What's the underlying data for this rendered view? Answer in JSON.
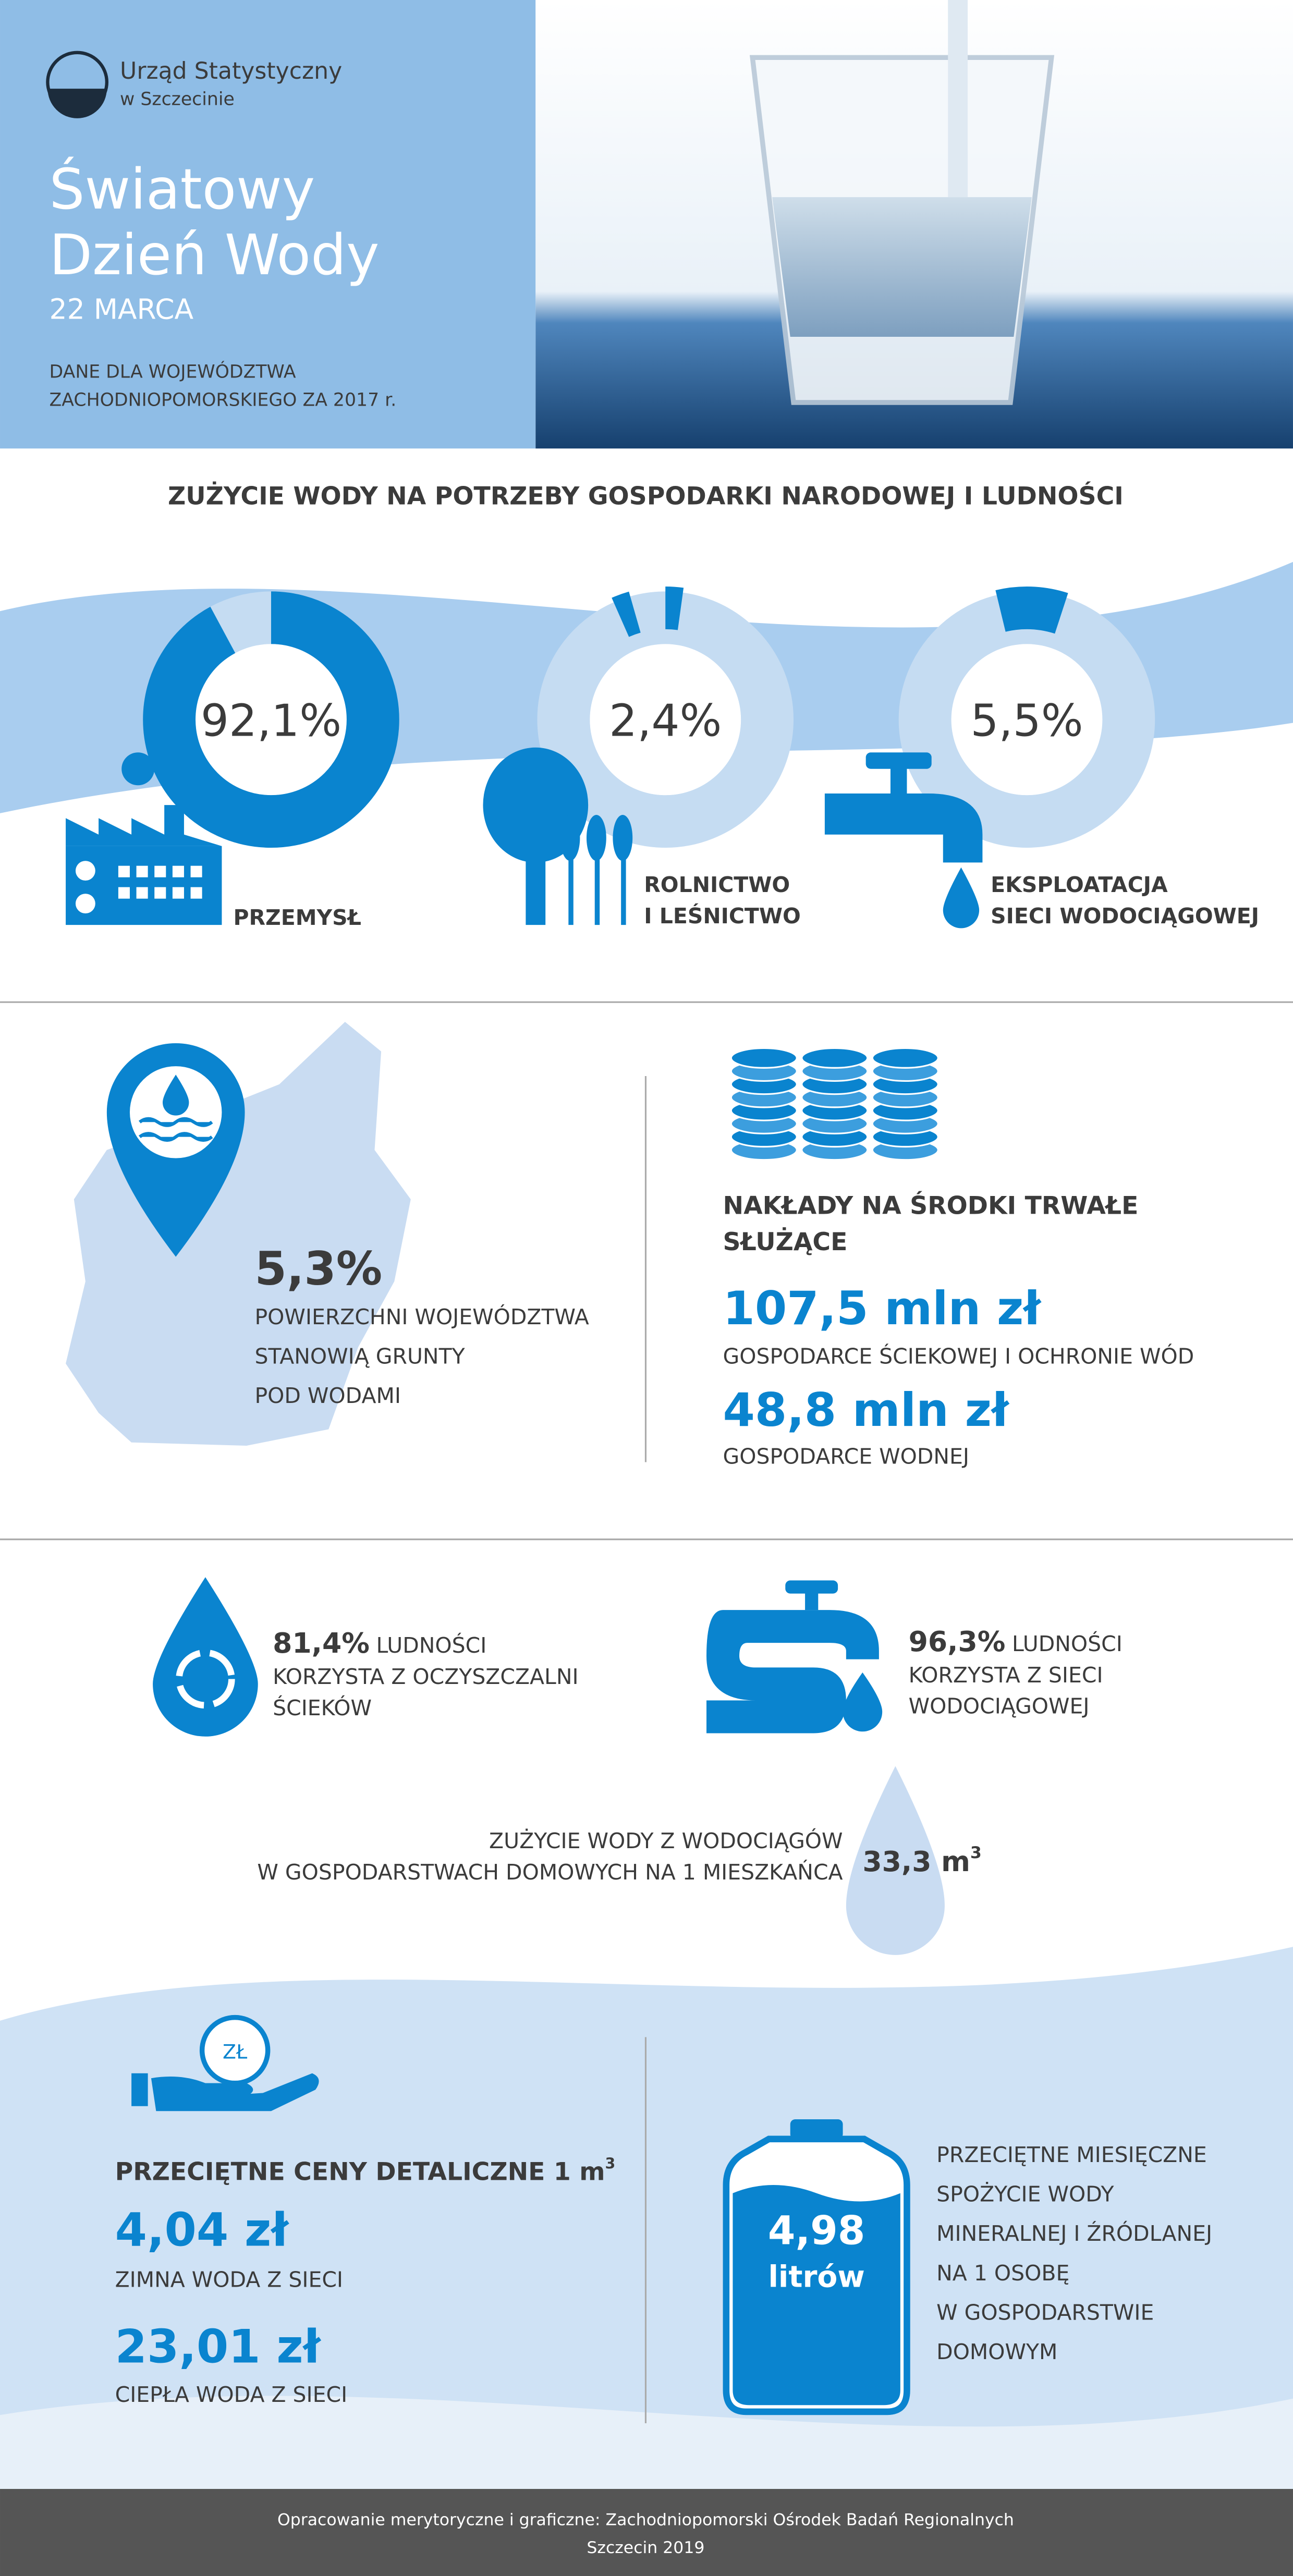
{
  "header": {
    "org_line1": "Urząd Statystyczny",
    "org_line2": "w Szczecinie",
    "title_line1": "Światowy",
    "title_line2": "Dzień Wody",
    "date": "22 MARCA",
    "note_line1": "DANE DLA WOJEWÓDZTWA",
    "note_line2": "ZACHODNIOPOMORSKIEGO ZA 2017 r."
  },
  "usage": {
    "title": "ZUŻYCIE WODY NA POTRZEBY GOSPODARKI NARODOWEJ I LUDNOŚCI",
    "items": [
      {
        "value": 92.1,
        "value_label": "92,1%",
        "label_lines": [
          "PRZEMYSŁ"
        ]
      },
      {
        "value": 2.4,
        "value_label": "2,4%",
        "label_lines": [
          "ROLNICTWO",
          "I LEŚNICTWO"
        ]
      },
      {
        "value": 5.5,
        "value_label": "5,5%",
        "label_lines": [
          "EKSPLOATACJA",
          "SIECI WODOCIĄGOWEJ"
        ]
      }
    ]
  },
  "area": {
    "value_label": "5,3%",
    "lines": [
      "POWIERZCHNI WOJEWÓDZTWA",
      "STANOWIĄ GRUNTY",
      "POD WODAMI"
    ]
  },
  "investment": {
    "title_lines": [
      "NAKŁADY NA ŚRODKI TRWAŁE",
      "SŁUŻĄCE"
    ],
    "items": [
      {
        "amount": "107,5 mln zł",
        "label": "GOSPODARCE ŚCIEKOWEJ I OCHRONIE WÓD"
      },
      {
        "amount": "48,8 mln zł",
        "label": "GOSPODARCE WODNEJ"
      }
    ]
  },
  "population": [
    {
      "value_label": "81,4%",
      "lines": [
        "LUDNOŚCI",
        "KORZYSTA Z OCZYSZCZALNI",
        "ŚCIEKÓW"
      ]
    },
    {
      "value_label": "96,3%",
      "lines": [
        "LUDNOŚCI",
        "KORZYSTA Z SIECI",
        "WODOCIĄGOWEJ"
      ]
    }
  ],
  "consumption": {
    "lines": [
      "ZUŻYCIE WODY Z WODOCIĄGÓW",
      "W GOSPODARSTWACH DOMOWYCH NA 1 MIESZKAŃCA"
    ],
    "value_label": "33,3 m",
    "superscript": "3"
  },
  "prices": {
    "icon_text": "ZŁ",
    "title": "PRZECIĘTNE CENY DETALICZNE 1 m",
    "title_superscript": "3",
    "items": [
      {
        "amount": "4,04 zł",
        "label": "ZIMNA WODA Z SIECI"
      },
      {
        "amount": "23,01 zł",
        "label": "CIEPŁA WODA Z SIECI"
      }
    ]
  },
  "mineral": {
    "amount": "4,98",
    "unit": "litrów",
    "lines": [
      "PRZECIĘTNE MIESIĘCZNE",
      "SPOŻYCIE WODY",
      "MINERALNEJ I ŹRÓDLANEJ",
      "NA 1 OSOBĘ",
      "W GOSPODARSTWIE",
      "DOMOWYM"
    ]
  },
  "footer": {
    "line1": "Opracowanie merytoryczne i graficzne: Zachodniopomorski Ośrodek Badań Regionalnych",
    "line2": "Szczecin 2019"
  }
}
